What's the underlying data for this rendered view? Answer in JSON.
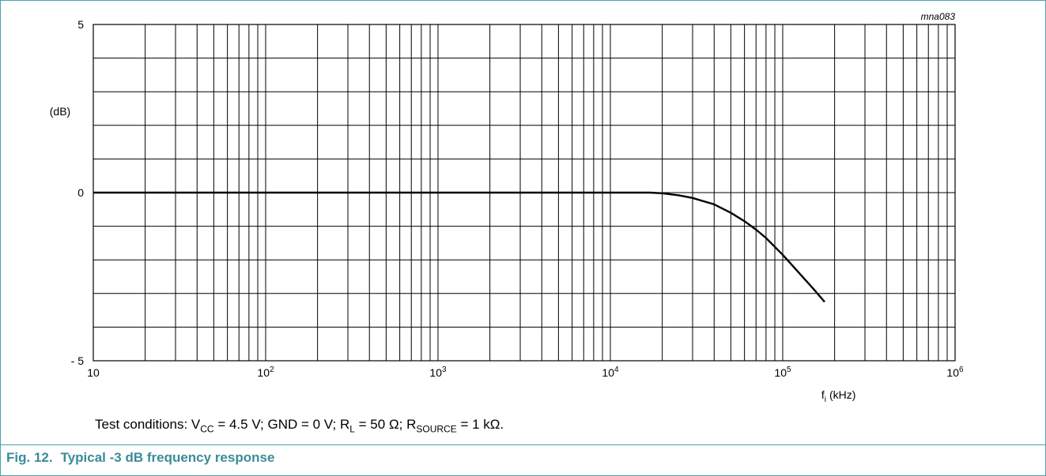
{
  "chart_data": {
    "type": "line",
    "figure_code": "mna083",
    "title": "",
    "xlabel": {
      "base": "f",
      "sub": "i",
      "unit": "(kHz)"
    },
    "ylabel": "(dB)",
    "x_scale": "log",
    "xlim": [
      10,
      1000000
    ],
    "ylim": [
      -5,
      5
    ],
    "grid": true,
    "x_ticks": [
      {
        "value": 10,
        "base": "10",
        "exp": ""
      },
      {
        "value": 100,
        "base": "10",
        "exp": "2"
      },
      {
        "value": 1000,
        "base": "10",
        "exp": "3"
      },
      {
        "value": 10000,
        "base": "10",
        "exp": "4"
      },
      {
        "value": 100000,
        "base": "10",
        "exp": "5"
      },
      {
        "value": 1000000,
        "base": "10",
        "exp": "6"
      }
    ],
    "y_ticks": [
      {
        "value": 5,
        "label": "5"
      },
      {
        "value": 0,
        "label": "0"
      },
      {
        "value": -5,
        "label": "- 5"
      }
    ],
    "series": [
      {
        "x": [
          10,
          1000,
          10000,
          17000,
          20000,
          25000,
          30000,
          40000,
          50000,
          60000,
          70000,
          80000,
          100000,
          120000,
          150000,
          175000
        ],
        "y": [
          0,
          0,
          0,
          0,
          -0.02,
          -0.08,
          -0.16,
          -0.35,
          -0.6,
          -0.85,
          -1.1,
          -1.35,
          -1.85,
          -2.3,
          -2.85,
          -3.25
        ]
      }
    ]
  },
  "test_conditions": {
    "prefix": "Test conditions: V",
    "vcc_sub": "CC",
    "vcc_val": " = 4.5 V; GND = 0 V; R",
    "rl_sub": "L",
    "rl_val": " = 50 Ω; R",
    "rs_sub": "SOURCE",
    "rs_val": " = 1 kΩ."
  },
  "figure_caption": {
    "number": "Fig. 12.",
    "text": "Typical -3 dB frequency response"
  }
}
